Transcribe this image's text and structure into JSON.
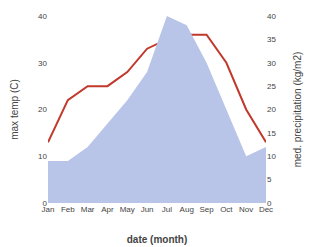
{
  "chart_data": {
    "type": "line",
    "xlabel": "date (month)",
    "ylabel": "max temp (C)",
    "y2label": "med. precipitation (kg/m2)",
    "categories": [
      "Jan",
      "Feb",
      "Mar",
      "Apr",
      "May",
      "Jun",
      "Jul",
      "Aug",
      "Sep",
      "Oct",
      "Nov",
      "Dec"
    ],
    "series": [
      {
        "type": "area",
        "axis": "y2",
        "color": "#b8c4e8",
        "values": [
          9,
          9,
          12,
          17,
          22,
          28,
          40,
          38,
          30,
          20,
          10,
          12
        ]
      },
      {
        "type": "line",
        "color": "#c0392b",
        "values": [
          13,
          22,
          25,
          25,
          28,
          33,
          35,
          36,
          36,
          30,
          20,
          13
        ]
      }
    ],
    "ylim": [
      0,
      40
    ],
    "yticks": [
      0,
      10,
      20,
      30,
      40
    ],
    "y2lim": [
      0,
      40
    ],
    "y2ticks": [
      0,
      5,
      10,
      15,
      20,
      25,
      30,
      35,
      40
    ],
    "grid": false
  }
}
